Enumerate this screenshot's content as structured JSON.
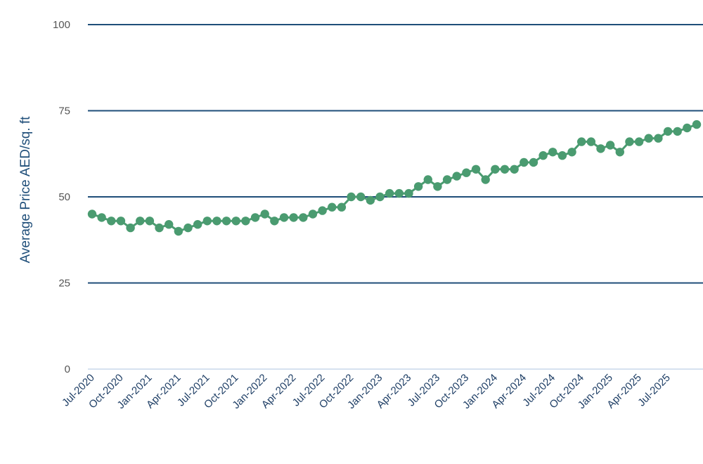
{
  "chart_data": {
    "type": "line",
    "title": "",
    "xlabel": "",
    "ylabel": "Average Price AED/sq. ft",
    "ylim": [
      0,
      100
    ],
    "yticks": [
      "0",
      "25",
      "50",
      "75",
      "100"
    ],
    "grid": true,
    "legend": "none",
    "colors": {
      "series": "#4a9b70",
      "grid": "#1f4e79",
      "axis": "#c9d7ec",
      "xtick": "#1f3f66",
      "ytick": "#555555",
      "ylabel": "#1f4e79"
    },
    "x": [
      "Jul-2020",
      "Aug-2020",
      "Sep-2020",
      "Oct-2020",
      "Nov-2020",
      "Dec-2020",
      "Jan-2021",
      "Feb-2021",
      "Mar-2021",
      "Apr-2021",
      "May-2021",
      "Jun-2021",
      "Jul-2021",
      "Aug-2021",
      "Sep-2021",
      "Oct-2021",
      "Nov-2021",
      "Dec-2021",
      "Jan-2022",
      "Feb-2022",
      "Mar-2022",
      "Apr-2022",
      "May-2022",
      "Jun-2022",
      "Jul-2022",
      "Aug-2022",
      "Sep-2022",
      "Oct-2022",
      "Nov-2022",
      "Dec-2022",
      "Jan-2023",
      "Feb-2023",
      "Mar-2023",
      "Apr-2023",
      "May-2023",
      "Jun-2023",
      "Jul-2023",
      "Aug-2023",
      "Sep-2023",
      "Oct-2023",
      "Nov-2023",
      "Dec-2023",
      "Jan-2024",
      "Feb-2024",
      "Mar-2024",
      "Apr-2024",
      "May-2024",
      "Jun-2024",
      "Jul-2024",
      "Aug-2024",
      "Sep-2024",
      "Oct-2024",
      "Nov-2024",
      "Dec-2024",
      "Jan-2025",
      "Feb-2025",
      "Mar-2025",
      "Apr-2025",
      "May-2025",
      "Jun-2025",
      "Jul-2025",
      "Aug-2025",
      "Sep-2025",
      "Oct-2025"
    ],
    "xticks": [
      "Jul-2020",
      "Oct-2020",
      "Jan-2021",
      "Apr-2021",
      "Jul-2021",
      "Oct-2021",
      "Jan-2022",
      "Apr-2022",
      "Jul-2022",
      "Oct-2022",
      "Jan-2023",
      "Apr-2023",
      "Jul-2023",
      "Oct-2023",
      "Jan-2024",
      "Apr-2024",
      "Jul-2024",
      "Oct-2024",
      "Jan-2025",
      "Apr-2025",
      "Jul-2025"
    ],
    "series": [
      {
        "values": [
          45,
          44,
          43,
          43,
          41,
          43,
          43,
          41,
          42,
          40,
          41,
          42,
          43,
          43,
          43,
          43,
          43,
          44,
          45,
          43,
          44,
          44,
          44,
          45,
          46,
          47,
          47,
          50,
          50,
          49,
          50,
          51,
          51,
          51,
          53,
          55,
          53,
          55,
          56,
          57,
          58,
          55,
          58,
          58,
          58,
          60,
          60,
          62,
          63,
          62,
          63,
          66,
          66,
          64,
          65,
          63,
          66,
          66,
          67,
          67,
          69,
          69,
          70,
          71
        ]
      }
    ]
  }
}
